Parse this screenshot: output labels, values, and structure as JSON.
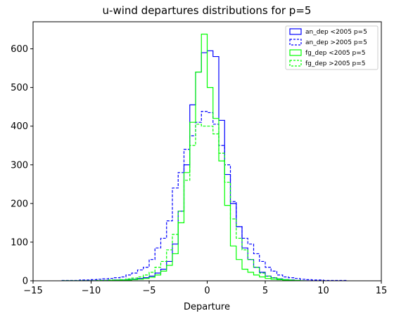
{
  "chart_data": {
    "type": "histogram",
    "title": "u-wind departures distributions for p=5",
    "xlabel": "Departure",
    "ylabel": "",
    "xlim": [
      -15,
      15
    ],
    "ylim": [
      0,
      670
    ],
    "xticks": [
      -15,
      -10,
      -5,
      0,
      5,
      10,
      15
    ],
    "yticks": [
      0,
      100,
      200,
      300,
      400,
      500,
      600
    ],
    "grid": false,
    "legend_position": "top-right",
    "series": [
      {
        "name": "an_dep <2005 p=5",
        "color": "#0000ff",
        "linestyle": "solid",
        "bin_edges": [
          -12.5,
          -12,
          -11.5,
          -11,
          -10.5,
          -10,
          -9.5,
          -9,
          -8.5,
          -8,
          -7.5,
          -7,
          -6.5,
          -6,
          -5.5,
          -5,
          -4.5,
          -4,
          -3.5,
          -3,
          -2.5,
          -2,
          -1.5,
          -1,
          -0.5,
          0,
          0.5,
          1,
          1.5,
          2,
          2.5,
          3,
          3.5,
          4,
          4.5,
          5,
          5.5,
          6,
          6.5,
          7,
          7.5,
          8,
          8.5,
          9
        ],
        "counts": [
          0,
          0,
          0,
          0,
          0,
          0,
          0,
          1,
          1,
          2,
          2,
          3,
          4,
          6,
          8,
          12,
          20,
          30,
          50,
          95,
          180,
          300,
          455,
          540,
          590,
          595,
          580,
          415,
          275,
          200,
          140,
          85,
          55,
          35,
          22,
          12,
          8,
          5,
          3,
          2,
          1,
          0,
          0
        ]
      },
      {
        "name": "an_dep >2005 p=5",
        "color": "#0000ff",
        "linestyle": "dashed",
        "bin_edges": [
          -12.5,
          -12,
          -11.5,
          -11,
          -10.5,
          -10,
          -9.5,
          -9,
          -8.5,
          -8,
          -7.5,
          -7,
          -6.5,
          -6,
          -5.5,
          -5,
          -4.5,
          -4,
          -3.5,
          -3,
          -2.5,
          -2,
          -1.5,
          -1,
          -0.5,
          0,
          0.5,
          1,
          1.5,
          2,
          2.5,
          3,
          3.5,
          4,
          4.5,
          5,
          5.5,
          6,
          6.5,
          7,
          7.5,
          8,
          8.5,
          9,
          9.5,
          10,
          10.5,
          11,
          11.5,
          12
        ],
        "counts": [
          1,
          1,
          1,
          2,
          2,
          3,
          4,
          5,
          6,
          8,
          10,
          15,
          20,
          28,
          35,
          55,
          85,
          110,
          155,
          240,
          280,
          340,
          375,
          410,
          438,
          435,
          405,
          350,
          300,
          205,
          140,
          110,
          95,
          70,
          50,
          35,
          25,
          15,
          10,
          8,
          6,
          4,
          3,
          2,
          2,
          1,
          1,
          1,
          1
        ]
      },
      {
        "name": "fg_dep <2005 p=5",
        "color": "#00ff00",
        "linestyle": "solid",
        "bin_edges": [
          -12.5,
          -12,
          -11.5,
          -11,
          -10.5,
          -10,
          -9.5,
          -9,
          -8.5,
          -8,
          -7.5,
          -7,
          -6.5,
          -6,
          -5.5,
          -5,
          -4.5,
          -4,
          -3.5,
          -3,
          -2.5,
          -2,
          -1.5,
          -1,
          -0.5,
          0,
          0.5,
          1,
          1.5,
          2,
          2.5,
          3,
          3.5,
          4,
          4.5,
          5,
          5.5,
          6,
          6.5,
          7,
          7.5,
          8,
          8.5
        ],
        "counts": [
          0,
          0,
          0,
          0,
          0,
          0,
          0,
          0,
          1,
          1,
          1,
          2,
          3,
          4,
          6,
          9,
          15,
          25,
          40,
          70,
          150,
          280,
          410,
          540,
          638,
          500,
          420,
          310,
          195,
          90,
          55,
          30,
          22,
          15,
          10,
          6,
          4,
          3,
          2,
          1,
          1,
          0
        ]
      },
      {
        "name": "fg_dep >2005 p=5",
        "color": "#00ff00",
        "linestyle": "dashed",
        "bin_edges": [
          -12.5,
          -12,
          -11.5,
          -11,
          -10.5,
          -10,
          -9.5,
          -9,
          -8.5,
          -8,
          -7.5,
          -7,
          -6.5,
          -6,
          -5.5,
          -5,
          -4.5,
          -4,
          -3.5,
          -3,
          -2.5,
          -2,
          -1.5,
          -1,
          -0.5,
          0,
          0.5,
          1,
          1.5,
          2,
          2.5,
          3,
          3.5,
          4,
          4.5,
          5,
          5.5,
          6,
          6.5,
          7,
          7.5,
          8,
          8.5
        ],
        "counts": [
          0,
          0,
          0,
          0,
          0,
          0,
          1,
          1,
          2,
          2,
          3,
          5,
          7,
          10,
          15,
          22,
          35,
          50,
          80,
          120,
          180,
          260,
          350,
          405,
          400,
          400,
          380,
          330,
          255,
          160,
          110,
          80,
          55,
          35,
          20,
          12,
          8,
          5,
          3,
          2,
          1,
          0
        ]
      }
    ]
  }
}
